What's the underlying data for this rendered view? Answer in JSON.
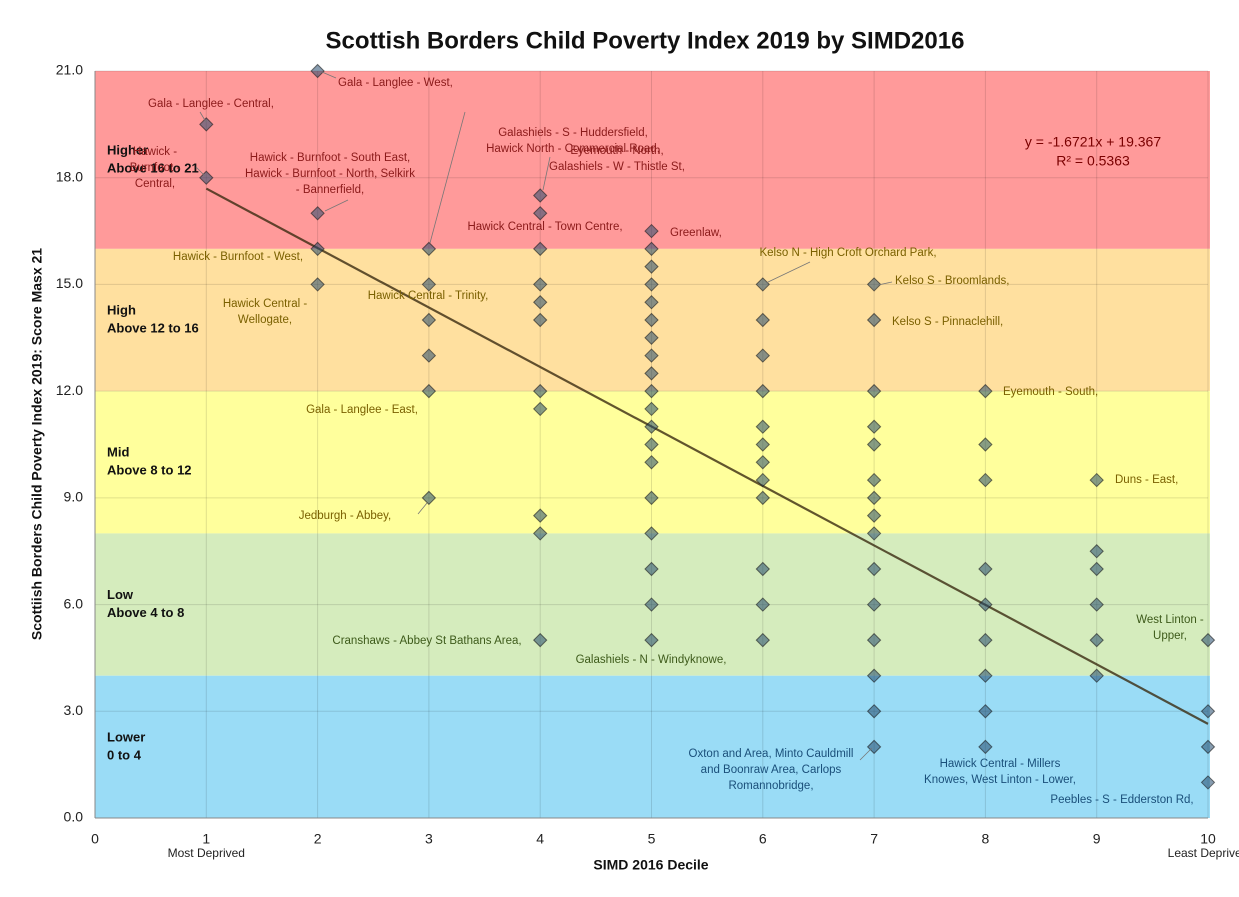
{
  "chart_data": {
    "type": "scatter",
    "title": "Scottish Borders Child Poverty Index 2019 by SIMD2016",
    "x_label": "SIMD 2016 Decile",
    "y_label": "Scottiish Borders Child Poverty Index 2019: Score Masx 21",
    "xlim": [
      0,
      10
    ],
    "ylim": [
      0,
      21
    ],
    "xticks": [
      0,
      1,
      2,
      3,
      4,
      5,
      6,
      7,
      8,
      9,
      10
    ],
    "yticks": [
      {
        "value": 0,
        "label": "0.0"
      },
      {
        "value": 3,
        "label": "3.0"
      },
      {
        "value": 6,
        "label": "6.0"
      },
      {
        "value": 9,
        "label": "9.0"
      },
      {
        "value": 12,
        "label": "12.0"
      },
      {
        "value": 15,
        "label": "15.0"
      },
      {
        "value": 18,
        "label": "18.0"
      },
      {
        "value": 21,
        "label": "21.0"
      }
    ],
    "grid": true,
    "x_notes": [
      {
        "x": 1,
        "label": "Most Deprived"
      },
      {
        "x": 10,
        "label": "Least Deprived"
      }
    ],
    "bands": [
      {
        "from": 16,
        "to": 21,
        "color": "#ff9a9a",
        "label": "Higher",
        "sublabel": "Above 16 to 21"
      },
      {
        "from": 12,
        "to": 16,
        "color": "#ffe09f",
        "label": "High",
        "sublabel": "Above 12 to 16"
      },
      {
        "from": 8,
        "to": 12,
        "color": "#ffff9c",
        "label": "Mid",
        "sublabel": "Above 8 to 12"
      },
      {
        "from": 4,
        "to": 8,
        "color": "#d5ecbd",
        "label": "Low",
        "sublabel": "Above 4 to 8"
      },
      {
        "from": 0,
        "to": 4,
        "color": "#9adcf6",
        "label": "Lower",
        "sublabel": "0 to 4"
      }
    ],
    "series": [
      {
        "color": "#244a6e",
        "x": [
          1,
          1,
          2,
          2,
          2,
          2,
          3,
          3,
          3,
          3,
          3,
          3,
          4,
          4,
          4,
          4,
          4,
          4,
          4,
          4,
          4,
          4,
          4,
          5,
          5,
          5,
          5,
          5,
          5,
          5,
          5,
          5,
          5,
          5,
          5,
          5,
          5,
          5,
          5,
          5,
          5,
          5,
          6,
          6,
          6,
          6,
          6,
          6,
          6,
          6,
          6,
          6,
          6,
          6,
          7,
          7,
          7,
          7,
          7,
          7,
          7,
          7,
          7,
          7,
          7,
          7,
          7,
          7,
          7,
          8,
          8,
          8,
          8,
          8,
          8,
          8,
          8,
          8,
          9,
          9,
          9,
          9,
          9,
          9,
          10,
          10,
          10,
          10
        ],
        "y": [
          19.5,
          18,
          21,
          17,
          16,
          15,
          16,
          15,
          14,
          13,
          12,
          9,
          17.5,
          17,
          16,
          15,
          14.5,
          14,
          12,
          11.5,
          8.5,
          8,
          5,
          16.5,
          16,
          15.5,
          15,
          14.5,
          14,
          13.5,
          13,
          12.5,
          12,
          11.5,
          11,
          10.5,
          10,
          9,
          8,
          7,
          6,
          5,
          15,
          14,
          13,
          12,
          11,
          10.5,
          10,
          9.5,
          9,
          7,
          6,
          5,
          15,
          14,
          12,
          11,
          10.5,
          9.5,
          9,
          8.5,
          8,
          7,
          6,
          5,
          4,
          3,
          2,
          12,
          10.5,
          9.5,
          7,
          6,
          5,
          4,
          3,
          2,
          9.5,
          7.5,
          7,
          6,
          5,
          4,
          5,
          3,
          2,
          1
        ]
      }
    ],
    "trendline": {
      "slope": -1.6721,
      "intercept": 19.367,
      "equation": "y = -1.6721x + 19.367",
      "r_squared": "R² = 0.5363",
      "color": "#3a2a10"
    },
    "annotations": [
      {
        "lines": [
          "Gala - Langlee - Central,"
        ]
      },
      {
        "lines": [
          "Gala - Langlee - West,"
        ]
      },
      {
        "lines": [
          "Hawick -",
          "Burnfoot -",
          "Central,"
        ]
      },
      {
        "lines": [
          "Hawick - Burnfoot - South East,",
          "Hawick - Burnfoot - North,  Selkirk",
          "- Bannerfield,"
        ]
      },
      {
        "lines": [
          "Galashiels - S - Huddersfield,",
          "Hawick North - Commercial Road,"
        ]
      },
      {
        "lines": [
          "Eyemouth - North,",
          "Galashiels - W - Thistle St,"
        ]
      },
      {
        "lines": [
          "Hawick Central - Town Centre,"
        ]
      },
      {
        "lines": [
          "Greenlaw,"
        ]
      },
      {
        "lines": [
          "Hawick - Burnfoot - West,"
        ]
      },
      {
        "lines": [
          "Kelso N - High Croft Orchard Park,"
        ]
      },
      {
        "lines": [
          "Kelso S - Broomlands,"
        ]
      },
      {
        "lines": [
          "Hawick Central - Trinity,"
        ]
      },
      {
        "lines": [
          "Hawick Central -",
          "Wellogate,"
        ]
      },
      {
        "lines": [
          "Kelso S - Pinnaclehill,"
        ]
      },
      {
        "lines": [
          "Eyemouth - South,"
        ]
      },
      {
        "lines": [
          "Gala - Langlee - East,"
        ]
      },
      {
        "lines": [
          "Duns - East,"
        ]
      },
      {
        "lines": [
          "Jedburgh - Abbey,"
        ]
      },
      {
        "lines": [
          "Cranshaws - Abbey St Bathans Area,"
        ]
      },
      {
        "lines": [
          "Galashiels - N - Windyknowe,"
        ]
      },
      {
        "lines": [
          "West Linton -",
          "Upper,"
        ]
      },
      {
        "lines": [
          "Oxton and Area,  Minto Cauldmill",
          "and Boonraw Area,  Carlops",
          "Romannobridge,"
        ]
      },
      {
        "lines": [
          "Hawick Central - Millers",
          "Knowes,  West Linton - Lower,"
        ]
      },
      {
        "lines": [
          "Peebles - S - Edderston Rd,"
        ]
      }
    ]
  }
}
